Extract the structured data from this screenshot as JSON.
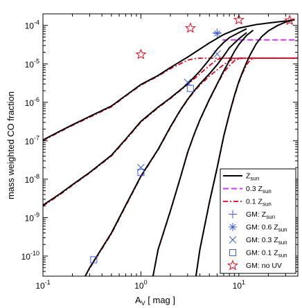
{
  "chart_data": {
    "type": "line",
    "xlabel_main": "A",
    "xlabel_sub": "V",
    "xlabel_unit": " [ mag ]",
    "ylabel": "mass weighted CO fraction",
    "xscale": "log",
    "yscale": "log",
    "xlim": [
      0.1,
      40
    ],
    "ylim": [
      3e-11,
      0.0002
    ],
    "x_ticks": [
      {
        "value": 0.1,
        "label": "10",
        "exp": "-1"
      },
      {
        "value": 1,
        "label": "10",
        "exp": "0"
      },
      {
        "value": 10,
        "label": "10",
        "exp": "1"
      }
    ],
    "y_ticks": [
      {
        "value": 1e-10,
        "label": "10",
        "exp": "-10"
      },
      {
        "value": 1e-09,
        "label": "10",
        "exp": "-9"
      },
      {
        "value": 1e-08,
        "label": "10",
        "exp": "-8"
      },
      {
        "value": 1e-07,
        "label": "10",
        "exp": "-7"
      },
      {
        "value": 1e-06,
        "label": "10",
        "exp": "-6"
      },
      {
        "value": 1e-05,
        "label": "10",
        "exp": "-5"
      },
      {
        "value": 0.0001,
        "label": "10",
        "exp": "-4"
      }
    ],
    "curves": [
      {
        "group": "Z1",
        "color": "#000000",
        "black": [
          [
            0.1,
            1.05e-07
          ],
          [
            0.15,
            1.8e-07
          ],
          [
            0.2,
            2.6e-07
          ],
          [
            0.3,
            4.3e-07
          ],
          [
            0.5,
            8e-07
          ],
          [
            0.7,
            1.5e-06
          ],
          [
            1,
            2.9e-06
          ],
          [
            1.5,
            5e-06
          ],
          [
            2,
            8e-06
          ],
          [
            3,
            1.5e-05
          ],
          [
            5,
            3.5e-05
          ],
          [
            7,
            5.8e-05
          ],
          [
            10,
            8.5e-05
          ],
          [
            15,
            0.000105
          ],
          [
            20,
            0.000115
          ],
          [
            30,
            0.00013
          ],
          [
            37,
            0.00014
          ]
        ],
        "red": [
          [
            0.1,
            1e-07
          ],
          [
            0.15,
            1.72e-07
          ],
          [
            0.2,
            2.5e-07
          ],
          [
            0.3,
            4.1e-07
          ],
          [
            0.5,
            7.6e-07
          ],
          [
            0.7,
            1.45e-06
          ],
          [
            1,
            2.8e-06
          ],
          [
            1.5,
            4.8e-06
          ],
          [
            2,
            7.5e-06
          ],
          [
            3,
            1.25e-05
          ],
          [
            3.7,
            1.4e-05
          ],
          [
            40,
            1.4e-05
          ]
        ]
      },
      {
        "group": "Z06",
        "color": "#000000",
        "black": [
          [
            0.1,
            2.1e-09
          ],
          [
            0.15,
            4.2e-09
          ],
          [
            0.2,
            7.2e-09
          ],
          [
            0.3,
            1.5e-08
          ],
          [
            0.5,
            4.2e-08
          ],
          [
            0.7,
            1.1e-07
          ],
          [
            1,
            3.2e-07
          ],
          [
            1.5,
            7.5e-07
          ],
          [
            2,
            1.3e-06
          ],
          [
            3,
            3e-06
          ],
          [
            4,
            6.5e-06
          ],
          [
            5,
            1.3e-05
          ],
          [
            6,
            2.4e-05
          ],
          [
            7,
            3.6e-05
          ],
          [
            8,
            4.8e-05
          ],
          [
            10,
            6.5e-05
          ],
          [
            12,
            8.2e-05
          ]
        ],
        "red": [
          [
            0.1,
            2e-09
          ],
          [
            0.15,
            4e-09
          ],
          [
            0.2,
            6.9e-09
          ],
          [
            0.3,
            1.45e-08
          ],
          [
            0.5,
            4e-08
          ],
          [
            0.7,
            1.05e-07
          ],
          [
            1,
            3.05e-07
          ],
          [
            1.5,
            7.2e-07
          ],
          [
            2,
            1.25e-06
          ],
          [
            3,
            2.9e-06
          ],
          [
            4,
            5.5e-06
          ],
          [
            5,
            9e-06
          ],
          [
            6,
            1.3e-05
          ],
          [
            7,
            1.4e-05
          ],
          [
            40,
            1.4e-05
          ]
        ]
      },
      {
        "group": "Z03",
        "color": "#000000",
        "black": [
          [
            0.27,
            3e-11
          ],
          [
            0.3,
            5e-11
          ],
          [
            0.5,
            4e-10
          ],
          [
            0.7,
            2.1e-09
          ],
          [
            1,
            1.2e-08
          ],
          [
            1.5,
            6e-08
          ],
          [
            2,
            2.3e-07
          ],
          [
            2.5,
            6e-07
          ],
          [
            3,
            1.2e-06
          ],
          [
            3.5,
            2e-06
          ],
          [
            4,
            3e-06
          ],
          [
            5,
            5.5e-06
          ],
          [
            6,
            9.5e-06
          ],
          [
            7,
            1.6e-05
          ],
          [
            8,
            2.6e-05
          ],
          [
            10,
            4.5e-05
          ],
          [
            12,
            6.5e-05
          ]
        ],
        "red": [
          [
            0.27,
            3e-11
          ],
          [
            0.3,
            4.8e-11
          ],
          [
            0.5,
            3.8e-10
          ],
          [
            0.7,
            2e-09
          ],
          [
            1,
            1.15e-08
          ],
          [
            1.5,
            5.8e-08
          ],
          [
            2,
            2.2e-07
          ],
          [
            2.5,
            5.8e-07
          ],
          [
            3,
            1.15e-06
          ],
          [
            3.5,
            1.9e-06
          ],
          [
            4,
            2.8e-06
          ],
          [
            5,
            4.8e-06
          ],
          [
            6,
            7e-06
          ],
          [
            7,
            9.5e-06
          ],
          [
            8,
            1.2e-05
          ],
          [
            9,
            1.35e-05
          ],
          [
            10,
            1.4e-05
          ],
          [
            40,
            1.4e-05
          ]
        ]
      },
      {
        "group": "Z01",
        "color": "#000000",
        "black": [
          [
            1.33,
            3e-11
          ],
          [
            1.5,
            1.5e-10
          ],
          [
            2,
            1.5e-09
          ],
          [
            2.5,
            1e-08
          ],
          [
            3,
            5e-08
          ],
          [
            3.5,
            1.5e-07
          ],
          [
            4,
            3.5e-07
          ],
          [
            5,
            1.2e-06
          ],
          [
            6,
            3e-06
          ],
          [
            7,
            6.5e-06
          ],
          [
            8,
            1.2e-05
          ],
          [
            9,
            2.1e-05
          ],
          [
            10,
            3.2e-05
          ],
          [
            12,
            5.5e-05
          ],
          [
            14,
            7.5e-05
          ]
        ],
        "red": [
          [
            1.33,
            3e-11
          ],
          [
            1.5,
            1.45e-10
          ],
          [
            2,
            1.45e-09
          ],
          [
            2.5,
            9.7e-09
          ],
          [
            3,
            4.8e-08
          ],
          [
            3.5,
            1.45e-07
          ],
          [
            4,
            3.4e-07
          ],
          [
            5,
            1.15e-06
          ],
          [
            6,
            2.9e-06
          ],
          [
            7,
            6e-06
          ],
          [
            8,
            9e-06
          ],
          [
            9,
            1.2e-05
          ],
          [
            10,
            1.35e-05
          ],
          [
            11,
            1.4e-05
          ],
          [
            40,
            1.4e-05
          ]
        ]
      },
      {
        "group": "Zlow",
        "color": "#000000",
        "black": [
          [
            3.65,
            3e-11
          ],
          [
            4,
            1.5e-10
          ],
          [
            5,
            2.5e-09
          ],
          [
            6,
            2e-08
          ],
          [
            7,
            1.3e-07
          ],
          [
            8,
            5e-07
          ],
          [
            9,
            1.5e-06
          ],
          [
            10,
            3.5e-06
          ],
          [
            11,
            6.5e-06
          ],
          [
            12,
            1.1e-05
          ],
          [
            13,
            1.7e-05
          ],
          [
            15,
            3.3e-05
          ],
          [
            17,
            5e-05
          ],
          [
            20,
            7.2e-05
          ],
          [
            25,
            0.0001
          ],
          [
            30,
            0.000122
          ],
          [
            37,
            0.00014
          ]
        ],
        "red": [
          [
            3.65,
            3e-11
          ],
          [
            4,
            1.45e-10
          ],
          [
            5,
            2.4e-09
          ],
          [
            6,
            1.9e-08
          ],
          [
            7,
            1.25e-07
          ],
          [
            8,
            4.8e-07
          ],
          [
            9,
            1.4e-06
          ],
          [
            10,
            3.3e-06
          ],
          [
            11,
            6e-06
          ],
          [
            12,
            9.5e-06
          ],
          [
            13,
            1.25e-05
          ],
          [
            14,
            1.38e-05
          ],
          [
            15,
            1.4e-05
          ],
          [
            40,
            1.4e-05
          ]
        ]
      }
    ],
    "magenta_curve": [
      [
        6.8,
        4.2e-05
      ],
      [
        8,
        4.2e-05
      ],
      [
        40,
        4.2e-05
      ]
    ],
    "markers": {
      "plus": [
        [
          6,
          6.5e-05
        ]
      ],
      "asterisk": [
        [
          6,
          6.2e-05
        ]
      ],
      "cross": [
        [
          1,
          2e-08
        ],
        [
          3,
          3.3e-06
        ],
        [
          6,
          1.8e-05
        ]
      ],
      "square": [
        [
          0.33,
          8e-11
        ],
        [
          1,
          1.5e-08
        ],
        [
          3.2,
          2.3e-06
        ]
      ],
      "star": [
        [
          1,
          1.75e-05
        ],
        [
          3.2,
          8.5e-05
        ],
        [
          10,
          0.00014
        ],
        [
          33,
          0.000135
        ]
      ]
    },
    "legend": [
      {
        "kind": "solid",
        "label": "Z",
        "sub": "sun"
      },
      {
        "kind": "magenta-dash",
        "label": "0.3 Z",
        "sub": "sun"
      },
      {
        "kind": "red-dashdot",
        "label": "0.1 Z",
        "sub": "sun"
      },
      {
        "kind": "plus",
        "label": "GM: Z",
        "sub": "sun"
      },
      {
        "kind": "asterisk",
        "label": "GM: 0.6 Z",
        "sub": "sun"
      },
      {
        "kind": "cross",
        "label": "GM: 0.3 Z",
        "sub": "sun"
      },
      {
        "kind": "square",
        "label": "GM: 0.1 Z",
        "sub": "sun"
      },
      {
        "kind": "star",
        "label": "GM: no UV",
        "sub": ""
      }
    ],
    "colors": {
      "solid": "#000000",
      "red": "#e8001c",
      "magenta": "#cc33ff",
      "marker_blue": "#3b5bdb",
      "star_red": "#e8001c"
    },
    "legend_position": "lower-right",
    "grid": false
  }
}
